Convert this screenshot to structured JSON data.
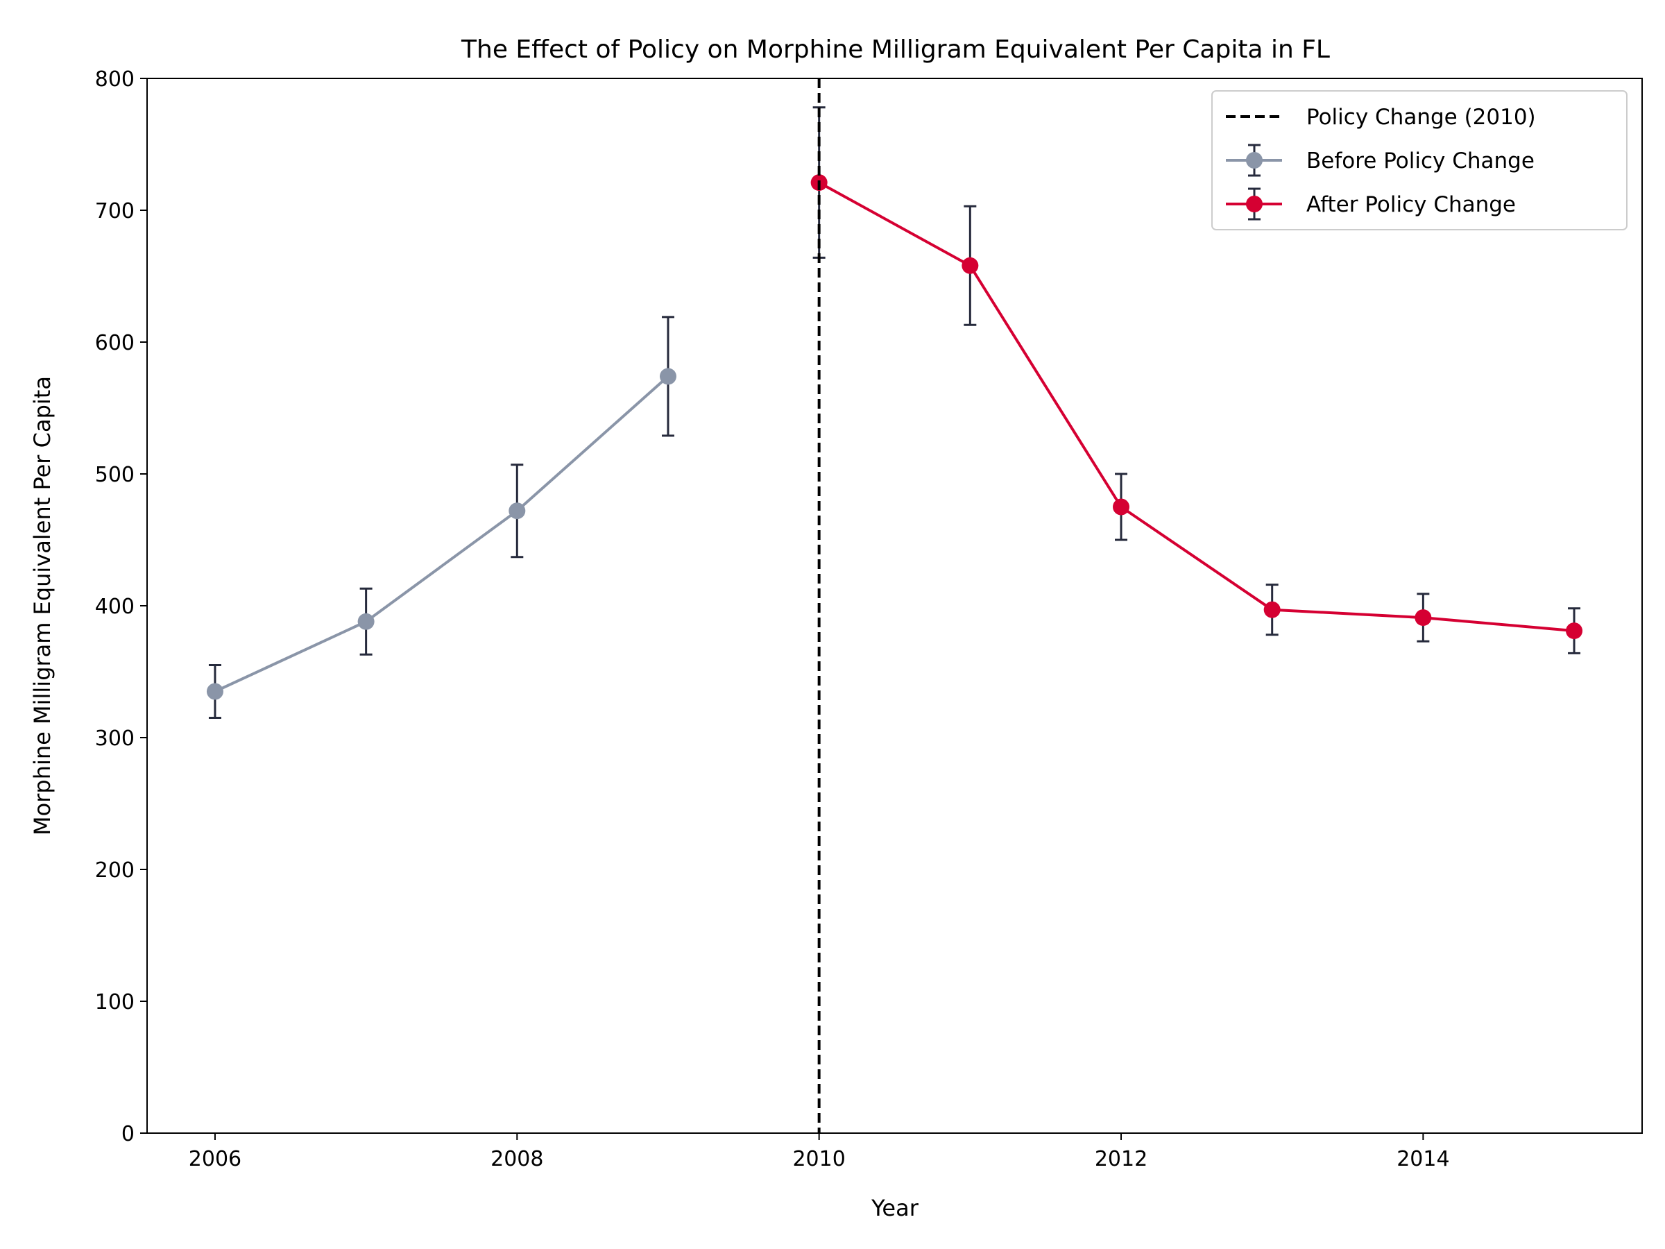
{
  "chart_data": {
    "type": "line",
    "title": "The Effect of Policy on Morphine Milligram Equivalent Per Capita in FL",
    "xlabel": "Year",
    "ylabel": "Morphine Milligram Equivalent Per Capita",
    "xlim": [
      2005.55,
      2015.45
    ],
    "ylim": [
      0,
      800
    ],
    "xticks": [
      2006,
      2008,
      2010,
      2012,
      2014
    ],
    "yticks": [
      0,
      100,
      200,
      300,
      400,
      500,
      600,
      700,
      800
    ],
    "grid": false,
    "legend_position": "top-right",
    "policy_line": {
      "x": 2010,
      "label": "Policy Change (2010)",
      "color": "#000000",
      "style": "dashed"
    },
    "errorbar_color": "#262a3c",
    "series": [
      {
        "name": "Before Policy Change",
        "color": "#8a95a8",
        "x": [
          2006,
          2007,
          2008,
          2009
        ],
        "y": [
          335,
          388,
          472,
          574
        ],
        "err": [
          20,
          25,
          35,
          45
        ]
      },
      {
        "name": "After Policy Change",
        "color": "#d50032",
        "x": [
          2010,
          2011,
          2012,
          2013,
          2014,
          2015
        ],
        "y": [
          721,
          658,
          475,
          397,
          391,
          381
        ],
        "err": [
          57,
          45,
          25,
          19,
          18,
          17
        ]
      }
    ]
  }
}
